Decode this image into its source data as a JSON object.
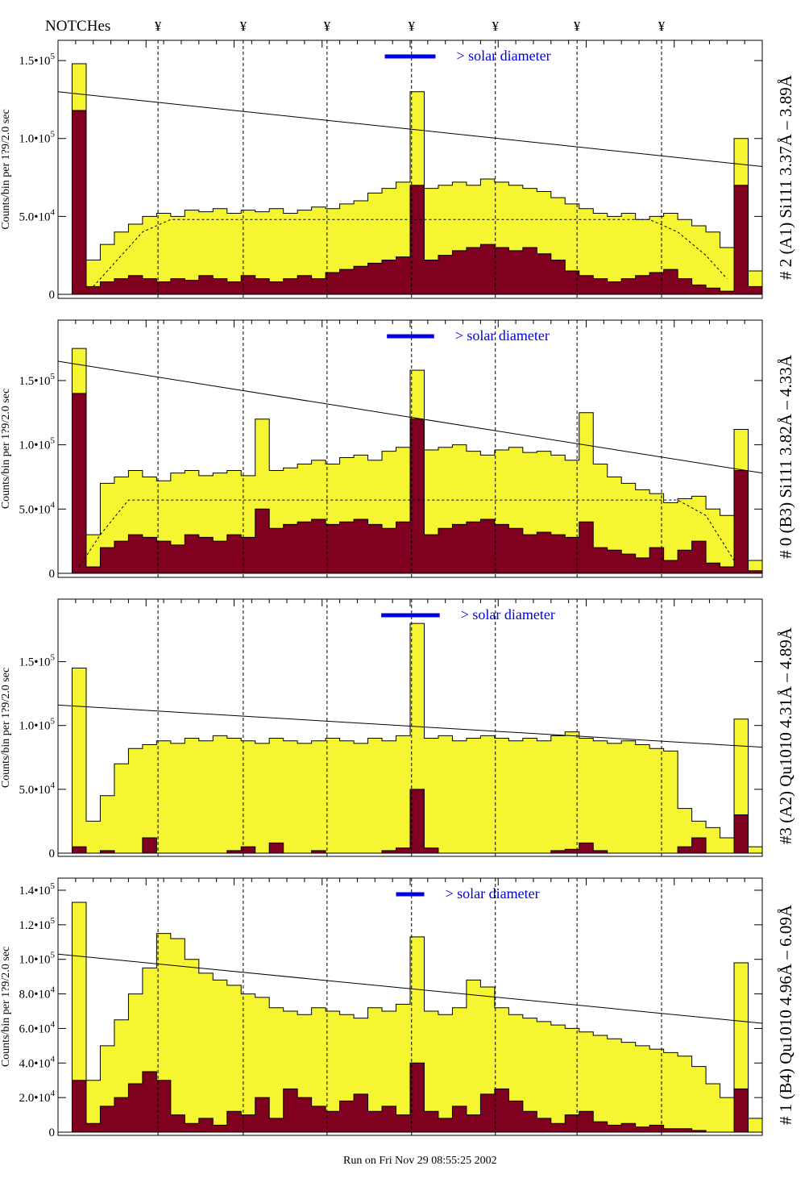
{
  "header": {
    "notches_label": "NOTCHes",
    "notch_symbol": "¥"
  },
  "footer": {
    "run_label": "Run on Fri Nov 29 08:55:25 2002"
  },
  "colors": {
    "total": "#f5f532",
    "subset": "#800020",
    "solar_bar": "#0000e0",
    "line": "#000000"
  },
  "chart_data": {
    "type": "bar",
    "x_range": [
      0,
      100
    ],
    "notch_positions": [
      14.2,
      26.3,
      38.2,
      50.2,
      62.1,
      73.7,
      85.7
    ],
    "panels": [
      {
        "title": "# 2 (A1) Si111  3.37Å – 3.89Å",
        "ylabel": "Counts/bin per  1?9/2.0 sec",
        "solar_label": "> solar diameter",
        "solar_bar": [
          46.4,
          53.6
        ],
        "ylim": [
          0,
          163000
        ],
        "yticks": [
          {
            "v": 0,
            "m": "0",
            "e": ""
          },
          {
            "v": 50000,
            "m": "5.0•10",
            "e": "4"
          },
          {
            "v": 100000,
            "m": "1.0•10",
            "e": "5"
          },
          {
            "v": 150000,
            "m": "1.5•10",
            "e": "5"
          }
        ],
        "line": [
          [
            0,
            130000
          ],
          [
            100,
            82000
          ]
        ],
        "fit": [
          [
            5,
            5000
          ],
          [
            8,
            20000
          ],
          [
            12,
            40000
          ],
          [
            16,
            48000
          ],
          [
            84,
            48000
          ],
          [
            88,
            40000
          ],
          [
            92,
            25000
          ],
          [
            95,
            10000
          ]
        ],
        "total": [
          0,
          148,
          22,
          32,
          40,
          45,
          50,
          52,
          50,
          54,
          53,
          55,
          52,
          54,
          53,
          55,
          52,
          54,
          56,
          55,
          58,
          60,
          65,
          68,
          72,
          130,
          68,
          70,
          72,
          70,
          74,
          72,
          70,
          68,
          66,
          62,
          58,
          55,
          52,
          50,
          52,
          48,
          50,
          52,
          48,
          44,
          40,
          30,
          100,
          15
        ],
        "subset": [
          0,
          118,
          5,
          8,
          10,
          12,
          10,
          8,
          10,
          9,
          12,
          10,
          8,
          12,
          10,
          8,
          10,
          12,
          10,
          14,
          16,
          18,
          20,
          22,
          24,
          70,
          22,
          25,
          28,
          30,
          32,
          30,
          28,
          30,
          26,
          22,
          15,
          12,
          10,
          8,
          10,
          12,
          14,
          16,
          10,
          6,
          4,
          2,
          70,
          5
        ]
      },
      {
        "title": "# 0 (B3) Si111  3.82Å – 4.33Å",
        "ylabel": "Counts/bin per  1?9/2.0 sec",
        "solar_label": "> solar diameter",
        "solar_bar": [
          46.7,
          53.4
        ],
        "ylim": [
          0,
          197000
        ],
        "yticks": [
          {
            "v": 0,
            "m": "0",
            "e": ""
          },
          {
            "v": 50000,
            "m": "5.0•10",
            "e": "4"
          },
          {
            "v": 100000,
            "m": "1.0•10",
            "e": "5"
          },
          {
            "v": 150000,
            "m": "1.5•10",
            "e": "5"
          }
        ],
        "line": [
          [
            0,
            165000
          ],
          [
            100,
            78000
          ]
        ],
        "fit": [
          [
            3,
            5000
          ],
          [
            6,
            30000
          ],
          [
            10,
            57000
          ],
          [
            88,
            57000
          ],
          [
            92,
            45000
          ],
          [
            96,
            10000
          ]
        ],
        "total": [
          0,
          175,
          30,
          70,
          75,
          80,
          75,
          72,
          78,
          80,
          76,
          78,
          80,
          76,
          120,
          80,
          82,
          85,
          88,
          85,
          90,
          92,
          88,
          95,
          98,
          158,
          96,
          98,
          100,
          95,
          92,
          96,
          98,
          94,
          95,
          92,
          88,
          125,
          85,
          75,
          70,
          65,
          62,
          55,
          58,
          60,
          50,
          45,
          112,
          10
        ],
        "subset": [
          0,
          140,
          5,
          20,
          25,
          30,
          28,
          25,
          22,
          30,
          28,
          25,
          30,
          28,
          50,
          35,
          38,
          40,
          42,
          38,
          40,
          42,
          38,
          35,
          40,
          120,
          30,
          35,
          38,
          40,
          42,
          38,
          35,
          30,
          32,
          30,
          28,
          40,
          20,
          18,
          15,
          12,
          20,
          10,
          18,
          25,
          8,
          5,
          80,
          2
        ]
      },
      {
        "title": "#3 (A2) Qu1010  4.31Å – 4.89Å",
        "ylabel": "Counts/bin per  1?9/2.0 sec",
        "solar_label": "> solar diameter",
        "solar_bar": [
          45.9,
          54.2
        ],
        "ylim": [
          0,
          199000
        ],
        "yticks": [
          {
            "v": 0,
            "m": "0",
            "e": ""
          },
          {
            "v": 50000,
            "m": "5.0•10",
            "e": "4"
          },
          {
            "v": 100000,
            "m": "1.0•10",
            "e": "5"
          },
          {
            "v": 150000,
            "m": "1.5•10",
            "e": "5"
          }
        ],
        "line": [
          [
            0,
            116000
          ],
          [
            100,
            83000
          ]
        ],
        "fit": [],
        "total": [
          0,
          145,
          25,
          45,
          70,
          82,
          85,
          88,
          86,
          90,
          88,
          92,
          90,
          88,
          86,
          90,
          88,
          86,
          88,
          90,
          88,
          86,
          90,
          88,
          92,
          180,
          90,
          92,
          88,
          90,
          92,
          90,
          88,
          90,
          88,
          92,
          95,
          90,
          88,
          86,
          88,
          85,
          82,
          80,
          35,
          25,
          20,
          12,
          105,
          5
        ],
        "subset": [
          0,
          5,
          0,
          2,
          0,
          0,
          12,
          0,
          0,
          0,
          0,
          0,
          2,
          5,
          0,
          8,
          0,
          0,
          2,
          0,
          0,
          0,
          0,
          2,
          4,
          50,
          4,
          0,
          0,
          0,
          0,
          0,
          0,
          0,
          0,
          2,
          3,
          8,
          2,
          0,
          0,
          0,
          0,
          0,
          5,
          12,
          0,
          0,
          30,
          0
        ]
      },
      {
        "title": "# 1 (B4) Qu1010 4.96Å – 6.09Å",
        "ylabel": "Counts/bin per  1?9/2.0 sec",
        "solar_label": "> solar diameter",
        "solar_bar": [
          48.0,
          52.0
        ],
        "ylim": [
          0,
          147000
        ],
        "yticks": [
          {
            "v": 0,
            "m": "0",
            "e": ""
          },
          {
            "v": 20000,
            "m": "2.0•10",
            "e": "4"
          },
          {
            "v": 40000,
            "m": "4.0•10",
            "e": "4"
          },
          {
            "v": 60000,
            "m": "6.0•10",
            "e": "4"
          },
          {
            "v": 80000,
            "m": "8.0•10",
            "e": "4"
          },
          {
            "v": 100000,
            "m": "1.0•10",
            "e": "5"
          },
          {
            "v": 120000,
            "m": "1.2•10",
            "e": "5"
          },
          {
            "v": 140000,
            "m": "1.4•10",
            "e": "5"
          }
        ],
        "line": [
          [
            0,
            103000
          ],
          [
            100,
            63000
          ]
        ],
        "fit": [],
        "total": [
          0,
          133,
          30,
          50,
          65,
          80,
          95,
          115,
          112,
          100,
          92,
          88,
          85,
          80,
          78,
          72,
          70,
          68,
          72,
          70,
          68,
          66,
          72,
          70,
          74,
          113,
          70,
          68,
          72,
          88,
          84,
          72,
          68,
          66,
          64,
          62,
          60,
          58,
          56,
          54,
          52,
          50,
          48,
          46,
          44,
          38,
          28,
          20,
          98,
          8
        ],
        "subset": [
          0,
          30,
          5,
          15,
          20,
          28,
          35,
          30,
          10,
          5,
          8,
          4,
          12,
          10,
          20,
          8,
          25,
          20,
          15,
          12,
          18,
          22,
          12,
          15,
          10,
          40,
          12,
          8,
          15,
          10,
          22,
          25,
          18,
          12,
          8,
          5,
          10,
          12,
          6,
          4,
          5,
          3,
          4,
          2,
          2,
          1,
          0,
          0,
          25,
          0
        ]
      }
    ]
  }
}
